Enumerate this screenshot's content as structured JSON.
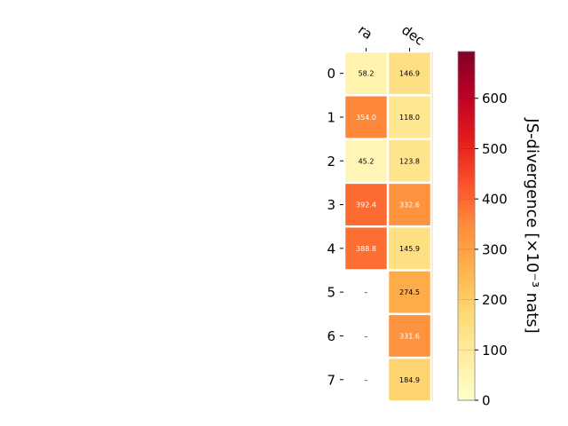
{
  "chart_data": {
    "type": "heatmap",
    "columns": [
      "ra",
      "dec"
    ],
    "rows": [
      "0",
      "1",
      "2",
      "3",
      "4",
      "5",
      "6",
      "7"
    ],
    "values": [
      [
        58.2,
        146.9
      ],
      [
        354.0,
        118.0
      ],
      [
        45.2,
        123.8
      ],
      [
        392.4,
        332.6
      ],
      [
        388.8,
        145.9
      ],
      [
        null,
        274.5
      ],
      [
        null,
        331.6
      ],
      [
        null,
        184.9
      ]
    ],
    "cell_labels": [
      [
        "58.2",
        "146.9"
      ],
      [
        "354.0",
        "118.0"
      ],
      [
        "45.2",
        "123.8"
      ],
      [
        "392.4",
        "332.6"
      ],
      [
        "388.8",
        "145.9"
      ],
      [
        "–",
        "274.5"
      ],
      [
        "–",
        "331.6"
      ],
      [
        "–",
        "184.9"
      ]
    ],
    "colorbar": {
      "label": "JS-divergence [×10⁻³ nats]",
      "vmin": 0,
      "vmax": 693,
      "ticks": [
        0,
        100,
        200,
        300,
        400,
        500,
        600
      ],
      "tick_labels": [
        "0",
        "100",
        "200",
        "300",
        "400",
        "500",
        "600"
      ],
      "colormap": "YlOrRd"
    },
    "colors": {
      "missing": "#ffffff",
      "dark_text": "#000000",
      "light_text": "#ffffff",
      "grid": "#ffffff"
    },
    "grid": false,
    "title": "",
    "xlabel": "",
    "ylabel": ""
  }
}
